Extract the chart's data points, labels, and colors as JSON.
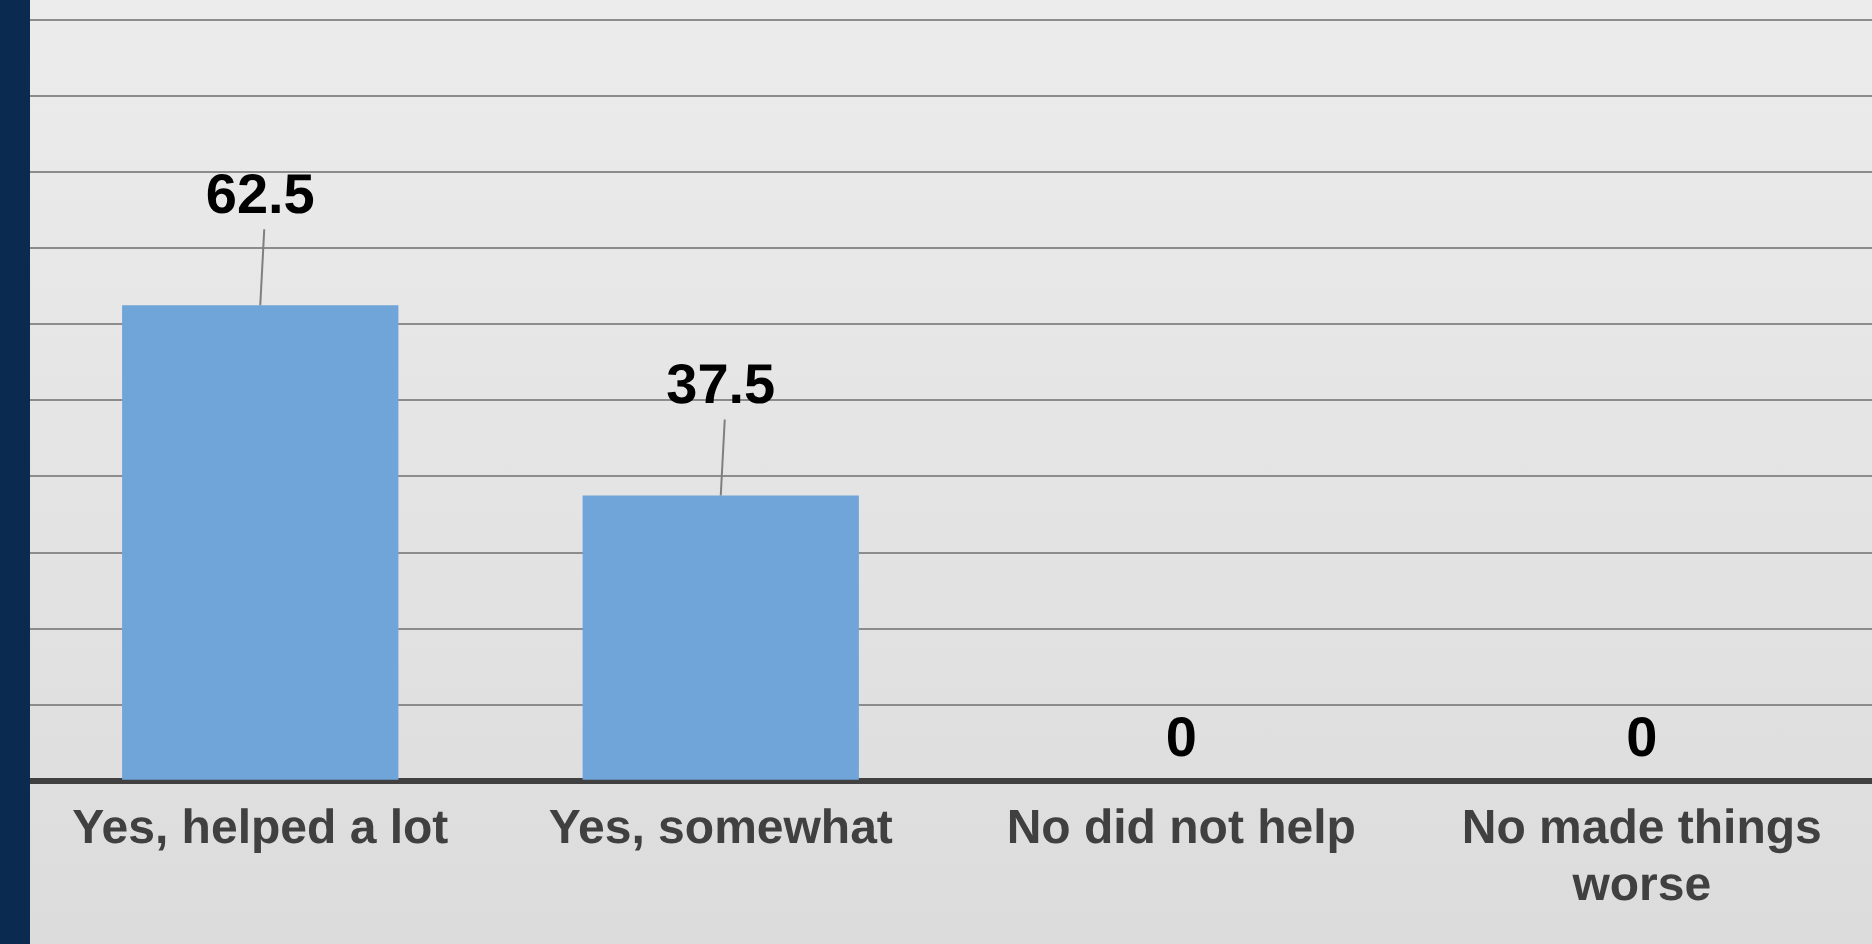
{
  "chart_data": {
    "type": "bar",
    "categories": [
      "Yes, helped a lot",
      "Yes, somewhat",
      "No did not help",
      "No made things worse"
    ],
    "values": [
      62.5,
      37.5,
      0,
      0
    ],
    "color": "#6fa5d8",
    "data_labels": true,
    "ylim": [
      0,
      100
    ],
    "yticks": [
      {
        "value": 0,
        "label": null
      },
      {
        "value": 10,
        "label": null
      },
      {
        "value": 20,
        "label": null
      },
      {
        "value": 30,
        "label": null
      },
      {
        "value": 40,
        "label": null
      },
      {
        "value": 50,
        "label": null
      },
      {
        "value": 60,
        "label": null
      },
      {
        "value": 70,
        "label": null
      },
      {
        "value": 80,
        "label": null
      },
      {
        "value": 90,
        "label": null
      },
      {
        "value": 100,
        "label": null
      }
    ],
    "grid": "y",
    "tick_labels": "x"
  }
}
